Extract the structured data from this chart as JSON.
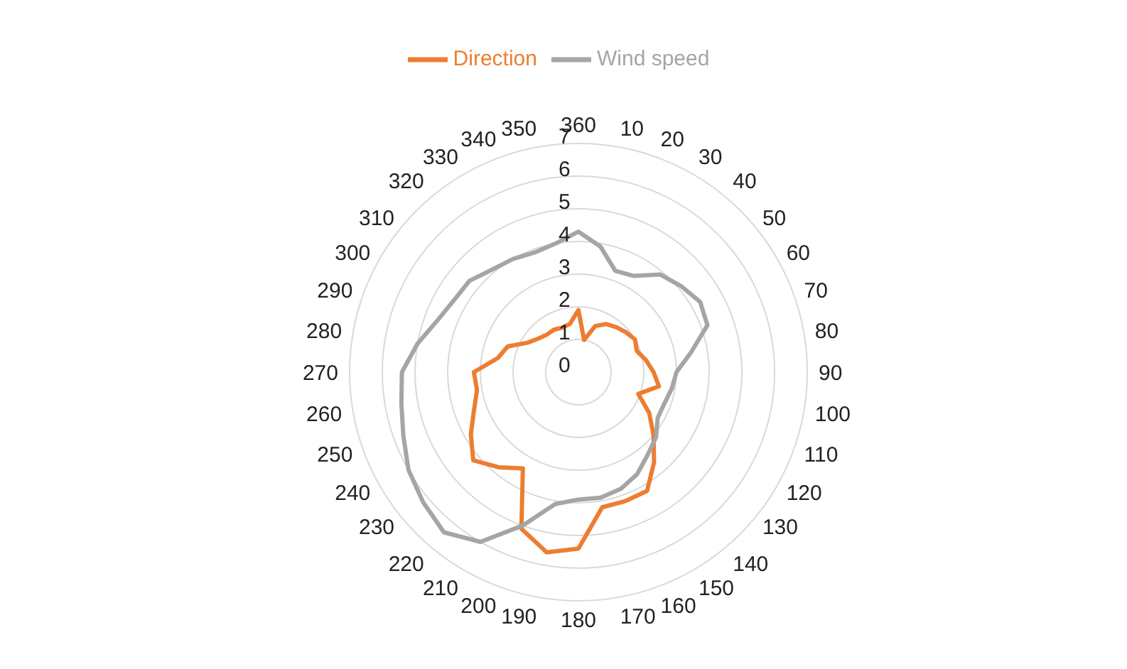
{
  "chart_data": {
    "type": "radar",
    "categories": [
      "360",
      "10",
      "20",
      "30",
      "40",
      "50",
      "60",
      "70",
      "80",
      "90",
      "100",
      "110",
      "120",
      "130",
      "140",
      "150",
      "160",
      "170",
      "180",
      "190",
      "200",
      "210",
      "220",
      "230",
      "240",
      "250",
      "260",
      "270",
      "280",
      "290",
      "300",
      "310",
      "320",
      "330",
      "340",
      "350"
    ],
    "series": [
      {
        "name": "Direction",
        "color": "#ed7d31",
        "values": [
          1.9,
          1.0,
          1.5,
          1.7,
          1.8,
          1.9,
          2.0,
          1.9,
          2.1,
          2.3,
          2.5,
          1.95,
          2.5,
          3.0,
          3.6,
          4.2,
          4.2,
          4.2,
          5.4,
          5.6,
          5.1,
          3.4,
          3.8,
          4.2,
          3.8,
          3.4,
          3.15,
          3.2,
          2.5,
          2.3,
          1.8,
          1.6,
          1.5,
          1.5,
          1.45,
          1.5
        ]
      },
      {
        "name": "Wind speed",
        "color": "#a5a5a5",
        "values": [
          4.3,
          3.9,
          3.3,
          3.4,
          3.9,
          4.1,
          4.3,
          4.2,
          3.5,
          3.0,
          2.9,
          2.8,
          2.8,
          3.1,
          3.3,
          3.6,
          3.8,
          3.9,
          3.9,
          4.1,
          5.0,
          6.0,
          6.4,
          6.2,
          6.0,
          5.7,
          5.5,
          5.4,
          5.0,
          4.6,
          4.4,
          4.35,
          4.1,
          4.0,
          3.9,
          4.0
        ]
      }
    ],
    "ylim": [
      0,
      7
    ],
    "yticks": [
      0,
      1,
      2,
      3,
      4,
      5,
      6,
      7
    ],
    "grid": true,
    "legend": "top",
    "marker": "none",
    "line_style": "solid"
  }
}
